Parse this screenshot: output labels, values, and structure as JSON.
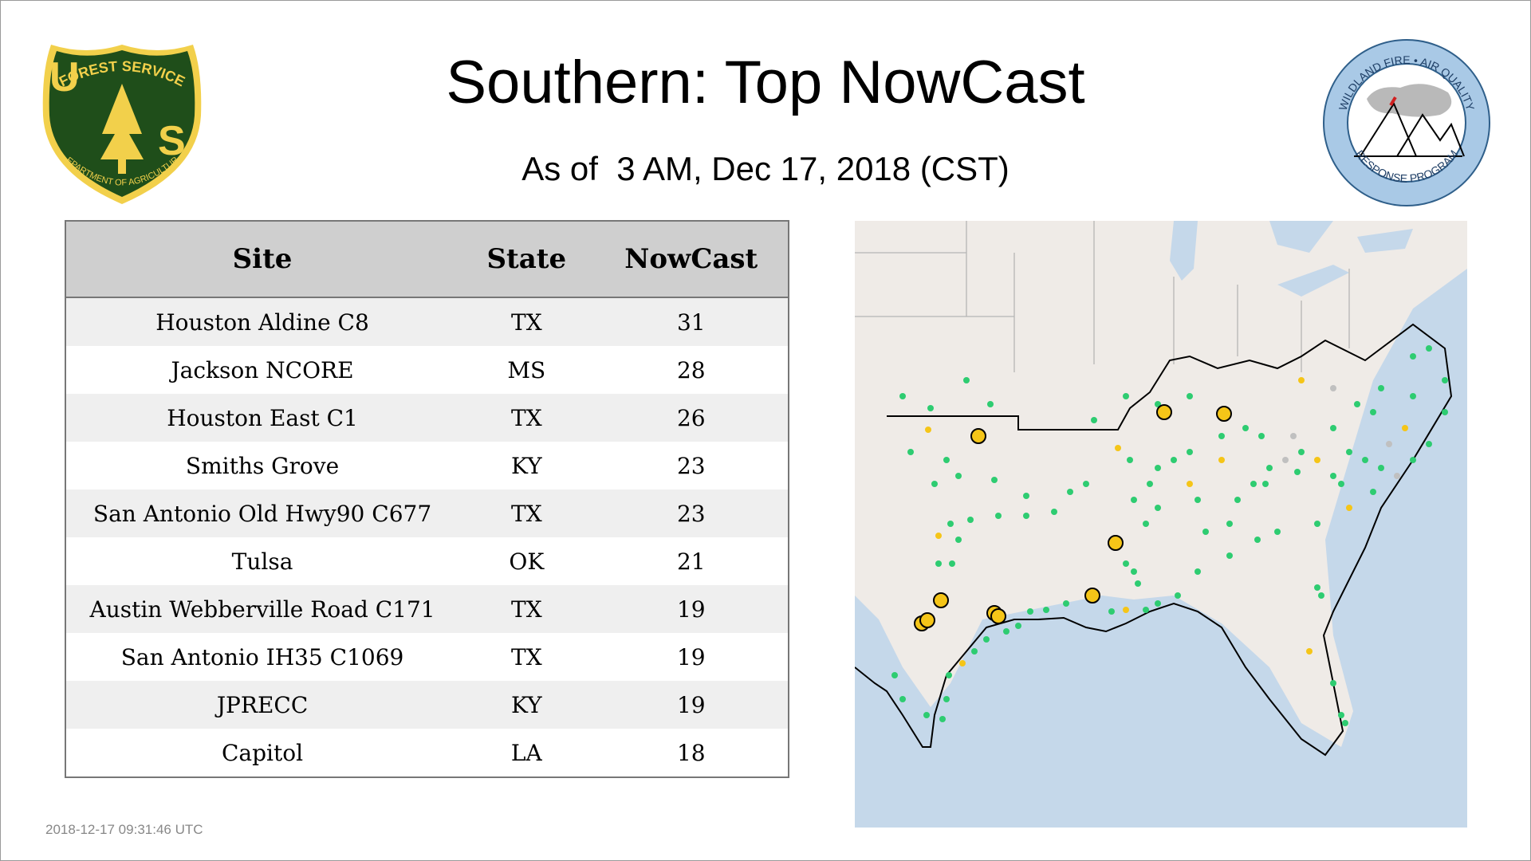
{
  "title": "Southern: Top NowCast",
  "subtitle": "As of  3 AM, Dec 17, 2018 (CST)",
  "logos": {
    "left": {
      "top_text": "FOREST SERVICE",
      "letters": "US",
      "bottom_text": "DEPARTMENT OF AGRICULTURE",
      "colors": {
        "green": "#1f4e1a",
        "gold": "#f2d04b"
      }
    },
    "right": {
      "top_text": "WILDLAND FIRE • AIR QUALITY",
      "bottom_text": "RESPONSE PROGRAM",
      "colors": {
        "ring": "#a9c9e6",
        "border": "#2f5f8a"
      }
    }
  },
  "table": {
    "headers": {
      "site": "Site",
      "state": "State",
      "nowcast": "NowCast"
    },
    "rows": [
      {
        "site": "Houston Aldine C8",
        "state": "TX",
        "nowcast": "31"
      },
      {
        "site": "Jackson NCORE",
        "state": "MS",
        "nowcast": "28"
      },
      {
        "site": "Houston East C1",
        "state": "TX",
        "nowcast": "26"
      },
      {
        "site": "Smiths Grove",
        "state": "KY",
        "nowcast": "23"
      },
      {
        "site": "San Antonio Old Hwy90 C677",
        "state": "TX",
        "nowcast": "23"
      },
      {
        "site": "Tulsa",
        "state": "OK",
        "nowcast": "21"
      },
      {
        "site": "Austin Webberville Road C171",
        "state": "TX",
        "nowcast": "19"
      },
      {
        "site": "San Antonio IH35 C1069",
        "state": "TX",
        "nowcast": "19"
      },
      {
        "site": "JPRECC",
        "state": "KY",
        "nowcast": "19"
      },
      {
        "site": "Capitol",
        "state": "LA",
        "nowcast": "18"
      }
    ]
  },
  "map": {
    "colors": {
      "land": "#efebe7",
      "water": "#c5d8ea",
      "good": "#2ecc71",
      "moderate": "#f5c518",
      "nodata": "#c0c0c0",
      "outline": "#000000"
    }
  },
  "timestamp": "2018-12-17 09:31:46 UTC"
}
